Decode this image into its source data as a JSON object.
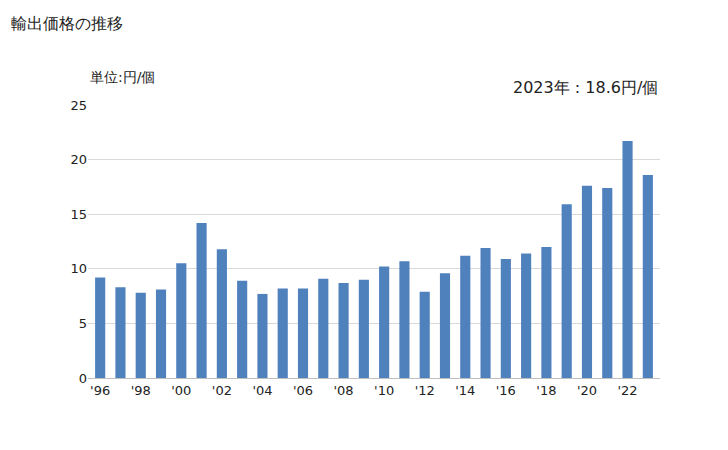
{
  "chart_data": {
    "type": "bar",
    "title": "輸出価格の推移",
    "ylabel": "単位:円/個",
    "annotations": [
      "2023年 : 18.6円/個"
    ],
    "categories": [
      "'96",
      null,
      "'98",
      null,
      "'00",
      null,
      "'02",
      null,
      "'04",
      null,
      "'06",
      null,
      "'08",
      null,
      "'10",
      null,
      "'12",
      null,
      "'14",
      null,
      "'16",
      null,
      "'18",
      null,
      "'20",
      null,
      "'22",
      null
    ],
    "values": [
      9.2,
      8.3,
      7.8,
      8.1,
      10.5,
      14.2,
      11.8,
      8.9,
      7.7,
      8.2,
      8.2,
      9.1,
      8.7,
      9.0,
      10.2,
      10.7,
      7.9,
      9.6,
      11.2,
      11.9,
      10.9,
      11.4,
      12.0,
      15.9,
      17.6,
      17.4,
      21.7,
      18.6
    ],
    "color": "#4f81bd",
    "ylim": [
      0,
      25
    ],
    "yticks": [
      0,
      5,
      10,
      15,
      20,
      25
    ],
    "grid": true
  }
}
